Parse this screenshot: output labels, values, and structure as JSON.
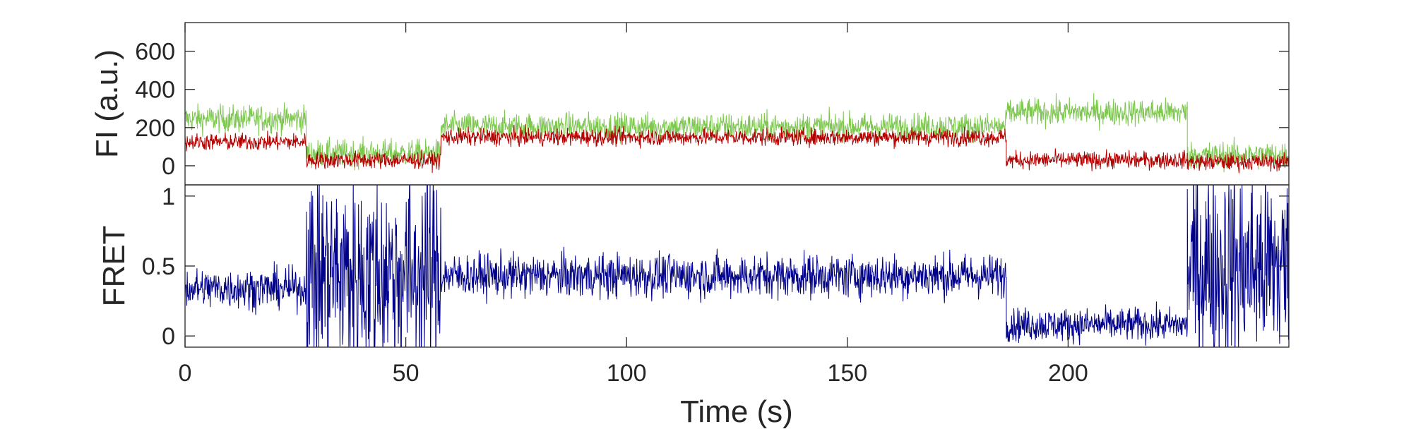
{
  "chart_data": [
    {
      "type": "line",
      "panel": "top",
      "ylabel": "FI (a.u.)",
      "xlim": [
        0,
        250
      ],
      "ylim": [
        -100,
        750
      ],
      "yticks": [
        0,
        200,
        400,
        600
      ],
      "ytick_labels": [
        "0",
        "200",
        "400",
        "600"
      ],
      "series": [
        {
          "color": "#7ec850",
          "note_noise": 60,
          "segments": [
            {
              "x0": 0,
              "x1": 27.5,
              "mean": 245
            },
            {
              "x0": 27.5,
              "x1": 58,
              "mean": 65
            },
            {
              "x0": 58,
              "x1": 186,
              "mean": 205
            },
            {
              "x0": 186,
              "x1": 227,
              "mean": 280
            },
            {
              "x0": 227,
              "x1": 250,
              "mean": 55
            }
          ]
        },
        {
          "color": "#b50000",
          "note_noise": 38,
          "segments": [
            {
              "x0": 0,
              "x1": 27.5,
              "mean": 125
            },
            {
              "x0": 27.5,
              "x1": 58,
              "mean": 30
            },
            {
              "x0": 58,
              "x1": 186,
              "mean": 150
            },
            {
              "x0": 186,
              "x1": 227,
              "mean": 30
            },
            {
              "x0": 227,
              "x1": 250,
              "mean": 20
            }
          ]
        }
      ]
    },
    {
      "type": "line",
      "panel": "bottom",
      "xlabel": "Time (s)",
      "ylabel": "FRET",
      "xlim": [
        0,
        250
      ],
      "ylim": [
        -0.08,
        1.08
      ],
      "xticks": [
        0,
        50,
        100,
        150,
        200
      ],
      "xtick_labels": [
        "0",
        "50",
        "100",
        "150",
        "200"
      ],
      "yticks": [
        0,
        0.5,
        1
      ],
      "ytick_labels": [
        "0",
        "0.5",
        "1"
      ],
      "series": [
        {
          "color": "#00008b",
          "segments": [
            {
              "x0": 0,
              "x1": 27.5,
              "mean": 0.34,
              "noise": 0.12
            },
            {
              "x0": 27.5,
              "x1": 58,
              "mean": 0.45,
              "noise": 0.6
            },
            {
              "x0": 58,
              "x1": 186,
              "mean": 0.43,
              "noise": 0.13
            },
            {
              "x0": 186,
              "x1": 227,
              "mean": 0.08,
              "noise": 0.1
            },
            {
              "x0": 227,
              "x1": 250,
              "mean": 0.5,
              "noise": 0.6
            }
          ]
        }
      ]
    }
  ]
}
